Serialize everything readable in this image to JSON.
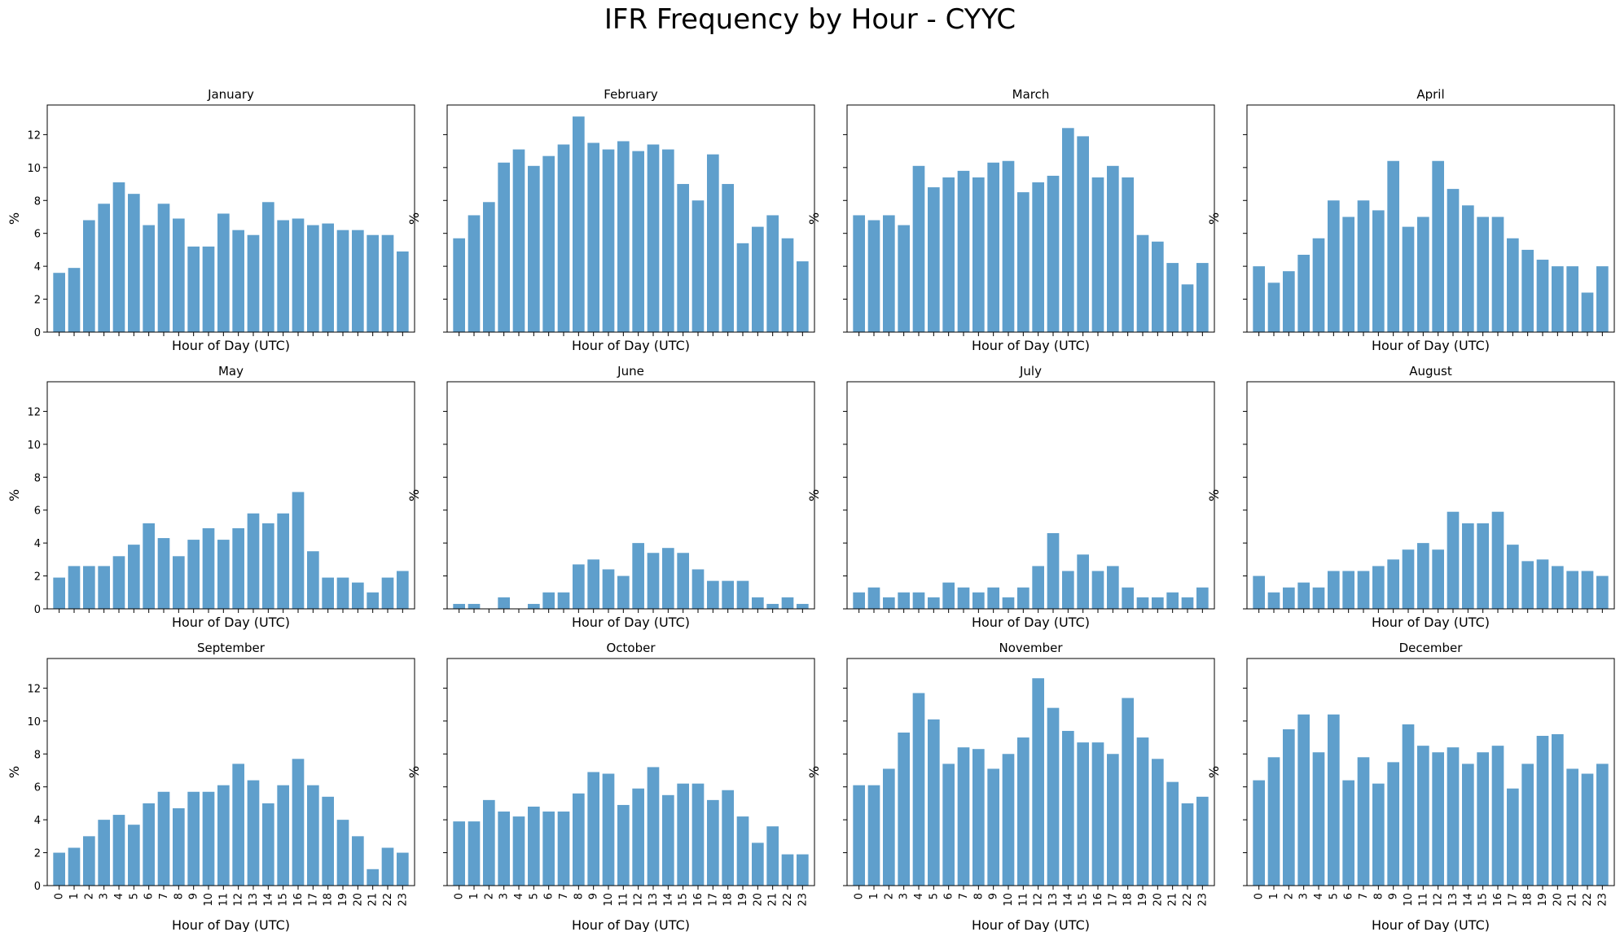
{
  "title": "IFR Frequency by Hour - CYYC",
  "bar_color": "#5f9fcc",
  "chart_data": [
    {
      "type": "bar",
      "title": "January",
      "xlabel": "Hour of Day (UTC)",
      "ylabel": "%",
      "ylim": [
        0,
        13.8
      ],
      "yticks": [
        0,
        2,
        4,
        6,
        8,
        10,
        12
      ],
      "categories": [
        "0",
        "1",
        "2",
        "3",
        "4",
        "5",
        "6",
        "7",
        "8",
        "9",
        "10",
        "11",
        "12",
        "13",
        "14",
        "15",
        "16",
        "17",
        "18",
        "19",
        "20",
        "21",
        "22",
        "23"
      ],
      "values": [
        3.6,
        3.9,
        6.8,
        7.8,
        9.1,
        8.4,
        6.5,
        7.8,
        6.9,
        5.2,
        5.2,
        7.2,
        6.2,
        5.9,
        7.9,
        6.8,
        6.9,
        6.5,
        6.6,
        6.2,
        6.2,
        5.9,
        5.9,
        4.9
      ]
    },
    {
      "type": "bar",
      "title": "February",
      "xlabel": "Hour of Day (UTC)",
      "ylabel": "%",
      "ylim": [
        0,
        13.8
      ],
      "yticks": [
        0,
        2,
        4,
        6,
        8,
        10,
        12
      ],
      "categories": [
        "0",
        "1",
        "2",
        "3",
        "4",
        "5",
        "6",
        "7",
        "8",
        "9",
        "10",
        "11",
        "12",
        "13",
        "14",
        "15",
        "16",
        "17",
        "18",
        "19",
        "20",
        "21",
        "22",
        "23"
      ],
      "values": [
        5.7,
        7.1,
        7.9,
        10.3,
        11.1,
        10.1,
        10.7,
        11.4,
        13.1,
        11.5,
        11.1,
        11.6,
        11.0,
        11.4,
        11.1,
        9.0,
        8.0,
        10.8,
        9.0,
        5.4,
        6.4,
        7.1,
        5.7,
        4.3
      ]
    },
    {
      "type": "bar",
      "title": "March",
      "xlabel": "Hour of Day (UTC)",
      "ylabel": "%",
      "ylim": [
        0,
        13.8
      ],
      "yticks": [
        0,
        2,
        4,
        6,
        8,
        10,
        12
      ],
      "categories": [
        "0",
        "1",
        "2",
        "3",
        "4",
        "5",
        "6",
        "7",
        "8",
        "9",
        "10",
        "11",
        "12",
        "13",
        "14",
        "15",
        "16",
        "17",
        "18",
        "19",
        "20",
        "21",
        "22",
        "23"
      ],
      "values": [
        7.1,
        6.8,
        7.1,
        6.5,
        10.1,
        8.8,
        9.4,
        9.8,
        9.4,
        10.3,
        10.4,
        8.5,
        9.1,
        9.5,
        12.4,
        11.9,
        9.4,
        10.1,
        9.4,
        5.9,
        5.5,
        4.2,
        2.9,
        4.2
      ]
    },
    {
      "type": "bar",
      "title": "April",
      "xlabel": "Hour of Day (UTC)",
      "ylabel": "%",
      "ylim": [
        0,
        13.8
      ],
      "yticks": [
        0,
        2,
        4,
        6,
        8,
        10,
        12
      ],
      "categories": [
        "0",
        "1",
        "2",
        "3",
        "4",
        "5",
        "6",
        "7",
        "8",
        "9",
        "10",
        "11",
        "12",
        "13",
        "14",
        "15",
        "16",
        "17",
        "18",
        "19",
        "20",
        "21",
        "22",
        "23"
      ],
      "values": [
        4.0,
        3.0,
        3.7,
        4.7,
        5.7,
        8.0,
        7.0,
        8.0,
        7.4,
        10.4,
        6.4,
        7.0,
        10.4,
        8.7,
        7.7,
        7.0,
        7.0,
        5.7,
        5.0,
        4.4,
        4.0,
        4.0,
        2.4,
        4.0
      ]
    },
    {
      "type": "bar",
      "title": "May",
      "xlabel": "Hour of Day (UTC)",
      "ylabel": "%",
      "ylim": [
        0,
        13.8
      ],
      "yticks": [
        0,
        2,
        4,
        6,
        8,
        10,
        12
      ],
      "categories": [
        "0",
        "1",
        "2",
        "3",
        "4",
        "5",
        "6",
        "7",
        "8",
        "9",
        "10",
        "11",
        "12",
        "13",
        "14",
        "15",
        "16",
        "17",
        "18",
        "19",
        "20",
        "21",
        "22",
        "23"
      ],
      "values": [
        1.9,
        2.6,
        2.6,
        2.6,
        3.2,
        3.9,
        5.2,
        4.3,
        3.2,
        4.2,
        4.9,
        4.2,
        4.9,
        5.8,
        5.2,
        5.8,
        7.1,
        3.5,
        1.9,
        1.9,
        1.6,
        1.0,
        1.9,
        2.3
      ]
    },
    {
      "type": "bar",
      "title": "June",
      "xlabel": "Hour of Day (UTC)",
      "ylabel": "%",
      "ylim": [
        0,
        13.8
      ],
      "yticks": [
        0,
        2,
        4,
        6,
        8,
        10,
        12
      ],
      "categories": [
        "0",
        "1",
        "2",
        "3",
        "4",
        "5",
        "6",
        "7",
        "8",
        "9",
        "10",
        "11",
        "12",
        "13",
        "14",
        "15",
        "16",
        "17",
        "18",
        "19",
        "20",
        "21",
        "22",
        "23"
      ],
      "values": [
        0.3,
        0.3,
        0,
        0.7,
        0,
        0.3,
        1.0,
        1.0,
        2.7,
        3.0,
        2.4,
        2.0,
        4.0,
        3.4,
        3.7,
        3.4,
        2.4,
        1.7,
        1.7,
        1.7,
        0.7,
        0.3,
        0.7,
        0.3
      ]
    },
    {
      "type": "bar",
      "title": "July",
      "xlabel": "Hour of Day (UTC)",
      "ylabel": "%",
      "ylim": [
        0,
        13.8
      ],
      "yticks": [
        0,
        2,
        4,
        6,
        8,
        10,
        12
      ],
      "categories": [
        "0",
        "1",
        "2",
        "3",
        "4",
        "5",
        "6",
        "7",
        "8",
        "9",
        "10",
        "11",
        "12",
        "13",
        "14",
        "15",
        "16",
        "17",
        "18",
        "19",
        "20",
        "21",
        "22",
        "23"
      ],
      "values": [
        1.0,
        1.3,
        0.7,
        1.0,
        1.0,
        0.7,
        1.6,
        1.3,
        1.0,
        1.3,
        0.7,
        1.3,
        2.6,
        4.6,
        2.3,
        3.3,
        2.3,
        2.6,
        1.3,
        0.7,
        0.7,
        1.0,
        0.7,
        1.3
      ]
    },
    {
      "type": "bar",
      "title": "August",
      "xlabel": "Hour of Day (UTC)",
      "ylabel": "%",
      "ylim": [
        0,
        13.8
      ],
      "yticks": [
        0,
        2,
        4,
        6,
        8,
        10,
        12
      ],
      "categories": [
        "0",
        "1",
        "2",
        "3",
        "4",
        "5",
        "6",
        "7",
        "8",
        "9",
        "10",
        "11",
        "12",
        "13",
        "14",
        "15",
        "16",
        "17",
        "18",
        "19",
        "20",
        "21",
        "22",
        "23"
      ],
      "values": [
        2.0,
        1.0,
        1.3,
        1.6,
        1.3,
        2.3,
        2.3,
        2.3,
        2.6,
        3.0,
        3.6,
        4.0,
        3.6,
        5.9,
        5.2,
        5.2,
        5.9,
        3.9,
        2.9,
        3.0,
        2.6,
        2.3,
        2.3,
        2.0
      ]
    },
    {
      "type": "bar",
      "title": "September",
      "xlabel": "Hour of Day (UTC)",
      "ylabel": "%",
      "ylim": [
        0,
        13.8
      ],
      "yticks": [
        0,
        2,
        4,
        6,
        8,
        10,
        12
      ],
      "categories": [
        "0",
        "1",
        "2",
        "3",
        "4",
        "5",
        "6",
        "7",
        "8",
        "9",
        "10",
        "11",
        "12",
        "13",
        "14",
        "15",
        "16",
        "17",
        "18",
        "19",
        "20",
        "21",
        "22",
        "23"
      ],
      "values": [
        2.0,
        2.3,
        3.0,
        4.0,
        4.3,
        3.7,
        5.0,
        5.7,
        4.7,
        5.7,
        5.7,
        6.1,
        7.4,
        6.4,
        5.0,
        6.1,
        7.7,
        6.1,
        5.4,
        4.0,
        3.0,
        1.0,
        2.3,
        2.0
      ]
    },
    {
      "type": "bar",
      "title": "October",
      "xlabel": "Hour of Day (UTC)",
      "ylabel": "%",
      "ylim": [
        0,
        13.8
      ],
      "yticks": [
        0,
        2,
        4,
        6,
        8,
        10,
        12
      ],
      "categories": [
        "0",
        "1",
        "2",
        "3",
        "4",
        "5",
        "6",
        "7",
        "8",
        "9",
        "10",
        "11",
        "12",
        "13",
        "14",
        "15",
        "16",
        "17",
        "18",
        "19",
        "20",
        "21",
        "22",
        "23"
      ],
      "values": [
        3.9,
        3.9,
        5.2,
        4.5,
        4.2,
        4.8,
        4.5,
        4.5,
        5.6,
        6.9,
        6.8,
        4.9,
        5.9,
        7.2,
        5.5,
        6.2,
        6.2,
        5.2,
        5.8,
        4.2,
        2.6,
        3.6,
        1.9,
        1.9
      ]
    },
    {
      "type": "bar",
      "title": "November",
      "xlabel": "Hour of Day (UTC)",
      "ylabel": "%",
      "ylim": [
        0,
        13.8
      ],
      "yticks": [
        0,
        2,
        4,
        6,
        8,
        10,
        12
      ],
      "categories": [
        "0",
        "1",
        "2",
        "3",
        "4",
        "5",
        "6",
        "7",
        "8",
        "9",
        "10",
        "11",
        "12",
        "13",
        "14",
        "15",
        "16",
        "17",
        "18",
        "19",
        "20",
        "21",
        "22",
        "23"
      ],
      "values": [
        6.1,
        6.1,
        7.1,
        9.3,
        11.7,
        10.1,
        7.4,
        8.4,
        8.3,
        7.1,
        8.0,
        9.0,
        12.6,
        10.8,
        9.4,
        8.7,
        8.7,
        8.0,
        11.4,
        9.0,
        7.7,
        6.3,
        5.0,
        5.4
      ]
    },
    {
      "type": "bar",
      "title": "December",
      "xlabel": "Hour of Day (UTC)",
      "ylabel": "%",
      "ylim": [
        0,
        13.8
      ],
      "yticks": [
        0,
        2,
        4,
        6,
        8,
        10,
        12
      ],
      "categories": [
        "0",
        "1",
        "2",
        "3",
        "4",
        "5",
        "6",
        "7",
        "8",
        "9",
        "10",
        "11",
        "12",
        "13",
        "14",
        "15",
        "16",
        "17",
        "18",
        "19",
        "20",
        "21",
        "22",
        "23"
      ],
      "values": [
        6.4,
        7.8,
        9.5,
        10.4,
        8.1,
        10.4,
        6.4,
        7.8,
        6.2,
        7.5,
        9.8,
        8.5,
        8.1,
        8.4,
        7.4,
        8.1,
        8.5,
        5.9,
        7.4,
        9.1,
        9.2,
        7.1,
        6.8,
        7.4
      ]
    }
  ]
}
